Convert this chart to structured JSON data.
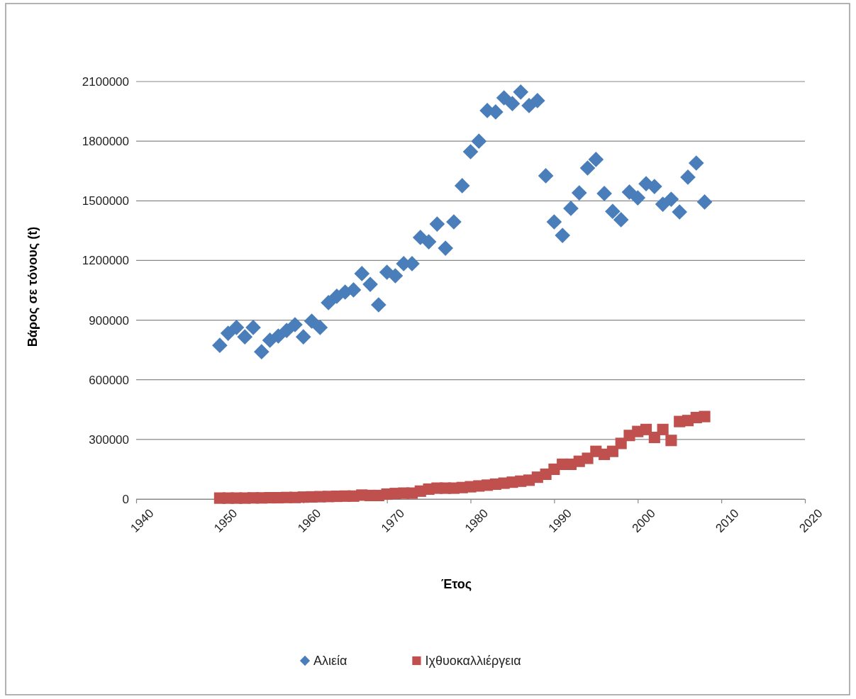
{
  "chart_data": {
    "type": "scatter",
    "xlabel": "Έτος",
    "ylabel": "Βάρος σε τόνους (t)",
    "xlim": [
      1940,
      2020
    ],
    "xticks": [
      1940,
      1950,
      1960,
      1970,
      1980,
      1990,
      2000,
      2010,
      2020
    ],
    "ylim": [
      0,
      2100000
    ],
    "yticks": [
      0,
      300000,
      600000,
      900000,
      1200000,
      1500000,
      1800000,
      2100000
    ],
    "grid": "y",
    "legend": "bottom",
    "x": [
      1950,
      1951,
      1952,
      1953,
      1954,
      1955,
      1956,
      1957,
      1958,
      1959,
      1960,
      1961,
      1962,
      1963,
      1964,
      1965,
      1966,
      1967,
      1968,
      1969,
      1970,
      1971,
      1972,
      1973,
      1974,
      1975,
      1976,
      1977,
      1978,
      1979,
      1980,
      1981,
      1982,
      1983,
      1984,
      1985,
      1986,
      1987,
      1988,
      1989,
      1990,
      1991,
      1992,
      1993,
      1994,
      1995,
      1996,
      1997,
      1998,
      1999,
      2000,
      2001,
      2002,
      2003,
      2004,
      2005,
      2006,
      2007,
      2008
    ],
    "series": [
      {
        "name": "Αλιεία",
        "color": "#4a7ebb",
        "marker": "diamond",
        "values": [
          773000,
          834000,
          863000,
          816000,
          863000,
          741000,
          799000,
          820000,
          848000,
          877000,
          816000,
          895000,
          863000,
          988000,
          1020000,
          1041000,
          1052000,
          1134000,
          1080000,
          977000,
          1141000,
          1123000,
          1184000,
          1184000,
          1316000,
          1294000,
          1383000,
          1262000,
          1394000,
          1576000,
          1747000,
          1800000,
          1954000,
          1947000,
          2018000,
          1989000,
          2047000,
          1979000,
          2004000,
          1626000,
          1394000,
          1326000,
          1462000,
          1540000,
          1665000,
          1708000,
          1537000,
          1447000,
          1405000,
          1544000,
          1515000,
          1586000,
          1572000,
          1483000,
          1508000,
          1444000,
          1619000,
          1690000,
          1494000
        ]
      },
      {
        "name": "Ιχθυοκαλλιέργεια",
        "color": "#c0504d",
        "marker": "square",
        "values": [
          5000,
          5000,
          5000,
          5000,
          6000,
          6000,
          7000,
          7000,
          8000,
          8000,
          10000,
          11000,
          12000,
          13000,
          14000,
          15000,
          15000,
          20000,
          18000,
          18000,
          25000,
          28000,
          30000,
          30000,
          40000,
          50000,
          55000,
          55000,
          55000,
          58000,
          62000,
          66000,
          70000,
          75000,
          80000,
          85000,
          90000,
          95000,
          110000,
          125000,
          150000,
          175000,
          175000,
          190000,
          205000,
          240000,
          225000,
          240000,
          280000,
          320000,
          340000,
          350000,
          310000,
          350000,
          295000,
          390000,
          395000,
          410000,
          415000
        ]
      }
    ]
  }
}
